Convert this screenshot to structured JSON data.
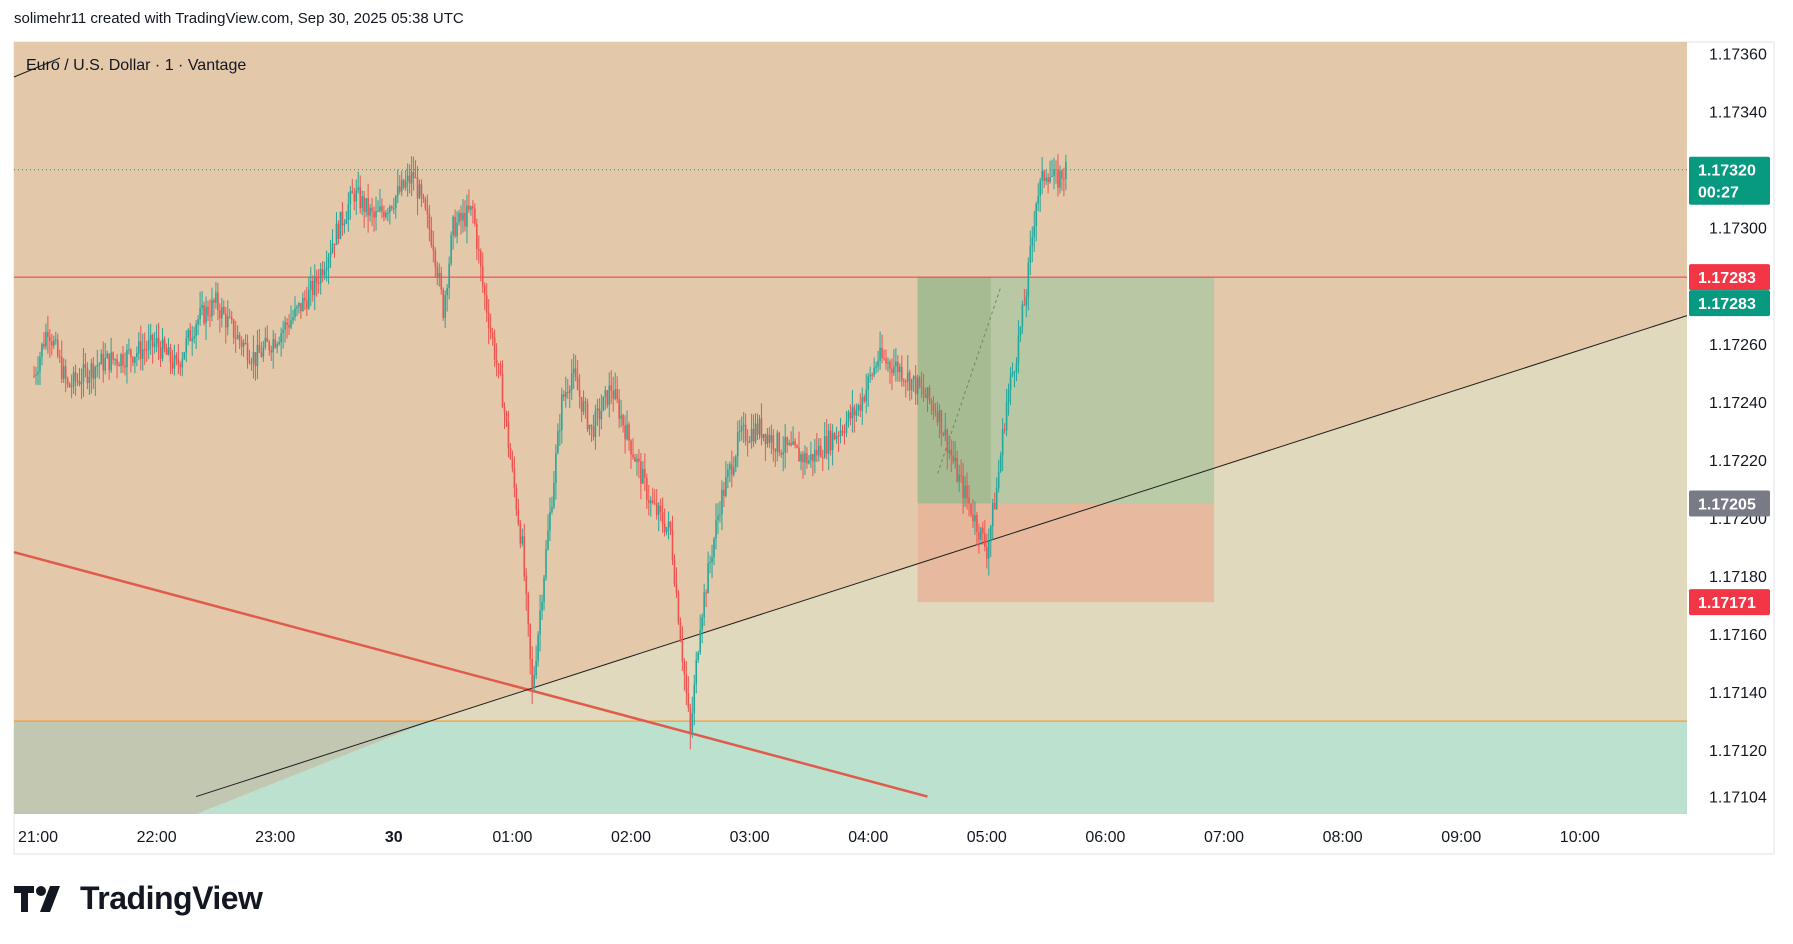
{
  "header": {
    "attribution": "solimehr11 created with TradingView.com, Sep 30, 2025 05:38 UTC"
  },
  "brand": {
    "logo_text": "TradingView"
  },
  "colors": {
    "zone_upper": "#e3c8aa",
    "zone_middle": "#e0d9bd",
    "zone_lower": "#bde1cf",
    "support_line": "#f59d3a",
    "resistance_line": "#f23645",
    "trend_down": "#e05b4b",
    "trend_up": "#1e1e1e",
    "candle_up": "#26a69a",
    "candle_down": "#ef5350",
    "price_tag": "#089981",
    "stop_tag": "#f23645",
    "entry_tag": "#787b86",
    "target_fill": "#b2c8a3",
    "stop_fill": "#e8b49a"
  },
  "chart_data": {
    "type": "candlestick",
    "title": "Euro / U.S. Dollar · 1 · Vantage",
    "x_ticks": [
      "21:00",
      "22:00",
      "23:00",
      "30",
      "01:00",
      "02:00",
      "03:00",
      "04:00",
      "05:00",
      "06:00",
      "07:00",
      "08:00",
      "09:00",
      "10:00"
    ],
    "y_ticks": [
      "1.17360",
      "1.17340",
      "1.17300",
      "1.17260",
      "1.17240",
      "1.17220",
      "1.17200",
      "1.17180",
      "1.17160",
      "1.17140",
      "1.17120",
      "1.17104"
    ],
    "ylim": [
      1.17098,
      1.17364
    ],
    "current_price": {
      "value": "1.17320",
      "countdown": "00:27"
    },
    "horizontal_lines": [
      {
        "name": "resistance",
        "value": 1.17283,
        "label": "1.17283"
      },
      {
        "name": "support",
        "value": 1.1713
      }
    ],
    "position": {
      "direction": "long",
      "entry": 1.17205,
      "entry_label": "1.17205",
      "target": 1.17283,
      "target_label": "1.17283",
      "stop": 1.17171,
      "stop_label": "1.17171",
      "start_time": "04:25",
      "end_time": "06:55"
    },
    "trendlines": [
      {
        "name": "descending",
        "from": {
          "time": "21:00",
          "price": 1.17186
        },
        "to": {
          "time": "04:30",
          "price": 1.17104
        }
      },
      {
        "name": "ascending",
        "from": {
          "time": "22:20",
          "price": 1.17104
        },
        "to": {
          "time": "11:00",
          "price": 1.17271
        }
      }
    ],
    "series": [
      {
        "name": "EURUSD 1m",
        "anchors": [
          [
            "20:58",
            1.17249
          ],
          [
            "21:05",
            1.17266
          ],
          [
            "21:15",
            1.17245
          ],
          [
            "21:30",
            1.17253
          ],
          [
            "21:45",
            1.17256
          ],
          [
            "22:00",
            1.1726
          ],
          [
            "22:10",
            1.17252
          ],
          [
            "22:20",
            1.17268
          ],
          [
            "22:30",
            1.17274
          ],
          [
            "22:40",
            1.17263
          ],
          [
            "22:50",
            1.17255
          ],
          [
            "23:00",
            1.17262
          ],
          [
            "23:10",
            1.1727
          ],
          [
            "23:20",
            1.1728
          ],
          [
            "23:30",
            1.17297
          ],
          [
            "23:40",
            1.17312
          ],
          [
            "23:50",
            1.17303
          ],
          [
            "00:00",
            1.1731
          ],
          [
            "00:10",
            1.17318
          ],
          [
            "00:20",
            1.17295
          ],
          [
            "00:25",
            1.17272
          ],
          [
            "00:30",
            1.173
          ],
          [
            "00:40",
            1.17306
          ],
          [
            "00:45",
            1.1728
          ],
          [
            "00:55",
            1.17242
          ],
          [
            "01:00",
            1.17215
          ],
          [
            "01:05",
            1.1719
          ],
          [
            "01:10",
            1.1714
          ],
          [
            "01:15",
            1.17175
          ],
          [
            "01:25",
            1.1724
          ],
          [
            "01:30",
            1.1725
          ],
          [
            "01:40",
            1.1723
          ],
          [
            "01:50",
            1.17245
          ],
          [
            "02:00",
            1.17225
          ],
          [
            "02:10",
            1.17205
          ],
          [
            "02:20",
            1.17195
          ],
          [
            "02:25",
            1.1716
          ],
          [
            "02:30",
            1.17125
          ],
          [
            "02:35",
            1.17165
          ],
          [
            "02:45",
            1.17205
          ],
          [
            "02:55",
            1.17228
          ],
          [
            "03:05",
            1.17231
          ],
          [
            "03:15",
            1.17225
          ],
          [
            "03:30",
            1.1722
          ],
          [
            "03:45",
            1.1723
          ],
          [
            "03:55",
            1.17238
          ],
          [
            "04:05",
            1.17255
          ],
          [
            "04:15",
            1.17252
          ],
          [
            "04:25",
            1.17245
          ],
          [
            "04:35",
            1.17237
          ],
          [
            "04:45",
            1.17215
          ],
          [
            "04:55",
            1.17198
          ],
          [
            "05:00",
            1.17189
          ],
          [
            "05:05",
            1.1721
          ],
          [
            "05:10",
            1.1724
          ],
          [
            "05:15",
            1.17257
          ],
          [
            "05:20",
            1.17278
          ],
          [
            "05:25",
            1.1731
          ],
          [
            "05:30",
            1.1732
          ],
          [
            "05:35",
            1.17316
          ],
          [
            "05:40",
            1.1732
          ]
        ]
      }
    ]
  }
}
